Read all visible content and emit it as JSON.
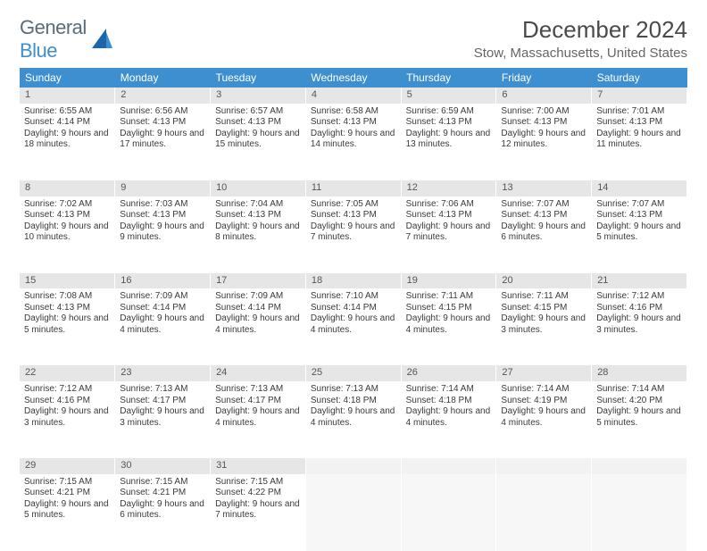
{
  "brand": {
    "part1": "General",
    "part2": "Blue"
  },
  "title": {
    "month": "December 2024",
    "location": "Stow, Massachusetts, United States"
  },
  "colors": {
    "header_bg": "#3d8fcf",
    "header_text": "#ffffff",
    "daynum_bg": "#e6e6e6",
    "empty_bg": "#f2f2f2",
    "text": "#3a3a3a"
  },
  "weekday_labels": [
    "Sunday",
    "Monday",
    "Tuesday",
    "Wednesday",
    "Thursday",
    "Friday",
    "Saturday"
  ],
  "weeks": [
    [
      {
        "n": "1",
        "sr": "6:55 AM",
        "ss": "4:14 PM",
        "dl": "9 hours and 18 minutes."
      },
      {
        "n": "2",
        "sr": "6:56 AM",
        "ss": "4:13 PM",
        "dl": "9 hours and 17 minutes."
      },
      {
        "n": "3",
        "sr": "6:57 AM",
        "ss": "4:13 PM",
        "dl": "9 hours and 15 minutes."
      },
      {
        "n": "4",
        "sr": "6:58 AM",
        "ss": "4:13 PM",
        "dl": "9 hours and 14 minutes."
      },
      {
        "n": "5",
        "sr": "6:59 AM",
        "ss": "4:13 PM",
        "dl": "9 hours and 13 minutes."
      },
      {
        "n": "6",
        "sr": "7:00 AM",
        "ss": "4:13 PM",
        "dl": "9 hours and 12 minutes."
      },
      {
        "n": "7",
        "sr": "7:01 AM",
        "ss": "4:13 PM",
        "dl": "9 hours and 11 minutes."
      }
    ],
    [
      {
        "n": "8",
        "sr": "7:02 AM",
        "ss": "4:13 PM",
        "dl": "9 hours and 10 minutes."
      },
      {
        "n": "9",
        "sr": "7:03 AM",
        "ss": "4:13 PM",
        "dl": "9 hours and 9 minutes."
      },
      {
        "n": "10",
        "sr": "7:04 AM",
        "ss": "4:13 PM",
        "dl": "9 hours and 8 minutes."
      },
      {
        "n": "11",
        "sr": "7:05 AM",
        "ss": "4:13 PM",
        "dl": "9 hours and 7 minutes."
      },
      {
        "n": "12",
        "sr": "7:06 AM",
        "ss": "4:13 PM",
        "dl": "9 hours and 7 minutes."
      },
      {
        "n": "13",
        "sr": "7:07 AM",
        "ss": "4:13 PM",
        "dl": "9 hours and 6 minutes."
      },
      {
        "n": "14",
        "sr": "7:07 AM",
        "ss": "4:13 PM",
        "dl": "9 hours and 5 minutes."
      }
    ],
    [
      {
        "n": "15",
        "sr": "7:08 AM",
        "ss": "4:13 PM",
        "dl": "9 hours and 5 minutes."
      },
      {
        "n": "16",
        "sr": "7:09 AM",
        "ss": "4:14 PM",
        "dl": "9 hours and 4 minutes."
      },
      {
        "n": "17",
        "sr": "7:09 AM",
        "ss": "4:14 PM",
        "dl": "9 hours and 4 minutes."
      },
      {
        "n": "18",
        "sr": "7:10 AM",
        "ss": "4:14 PM",
        "dl": "9 hours and 4 minutes."
      },
      {
        "n": "19",
        "sr": "7:11 AM",
        "ss": "4:15 PM",
        "dl": "9 hours and 4 minutes."
      },
      {
        "n": "20",
        "sr": "7:11 AM",
        "ss": "4:15 PM",
        "dl": "9 hours and 3 minutes."
      },
      {
        "n": "21",
        "sr": "7:12 AM",
        "ss": "4:16 PM",
        "dl": "9 hours and 3 minutes."
      }
    ],
    [
      {
        "n": "22",
        "sr": "7:12 AM",
        "ss": "4:16 PM",
        "dl": "9 hours and 3 minutes."
      },
      {
        "n": "23",
        "sr": "7:13 AM",
        "ss": "4:17 PM",
        "dl": "9 hours and 3 minutes."
      },
      {
        "n": "24",
        "sr": "7:13 AM",
        "ss": "4:17 PM",
        "dl": "9 hours and 4 minutes."
      },
      {
        "n": "25",
        "sr": "7:13 AM",
        "ss": "4:18 PM",
        "dl": "9 hours and 4 minutes."
      },
      {
        "n": "26",
        "sr": "7:14 AM",
        "ss": "4:18 PM",
        "dl": "9 hours and 4 minutes."
      },
      {
        "n": "27",
        "sr": "7:14 AM",
        "ss": "4:19 PM",
        "dl": "9 hours and 4 minutes."
      },
      {
        "n": "28",
        "sr": "7:14 AM",
        "ss": "4:20 PM",
        "dl": "9 hours and 5 minutes."
      }
    ],
    [
      {
        "n": "29",
        "sr": "7:15 AM",
        "ss": "4:21 PM",
        "dl": "9 hours and 5 minutes."
      },
      {
        "n": "30",
        "sr": "7:15 AM",
        "ss": "4:21 PM",
        "dl": "9 hours and 6 minutes."
      },
      {
        "n": "31",
        "sr": "7:15 AM",
        "ss": "4:22 PM",
        "dl": "9 hours and 7 minutes."
      },
      null,
      null,
      null,
      null
    ]
  ],
  "labels": {
    "sunrise": "Sunrise:",
    "sunset": "Sunset:",
    "daylight": "Daylight:"
  }
}
